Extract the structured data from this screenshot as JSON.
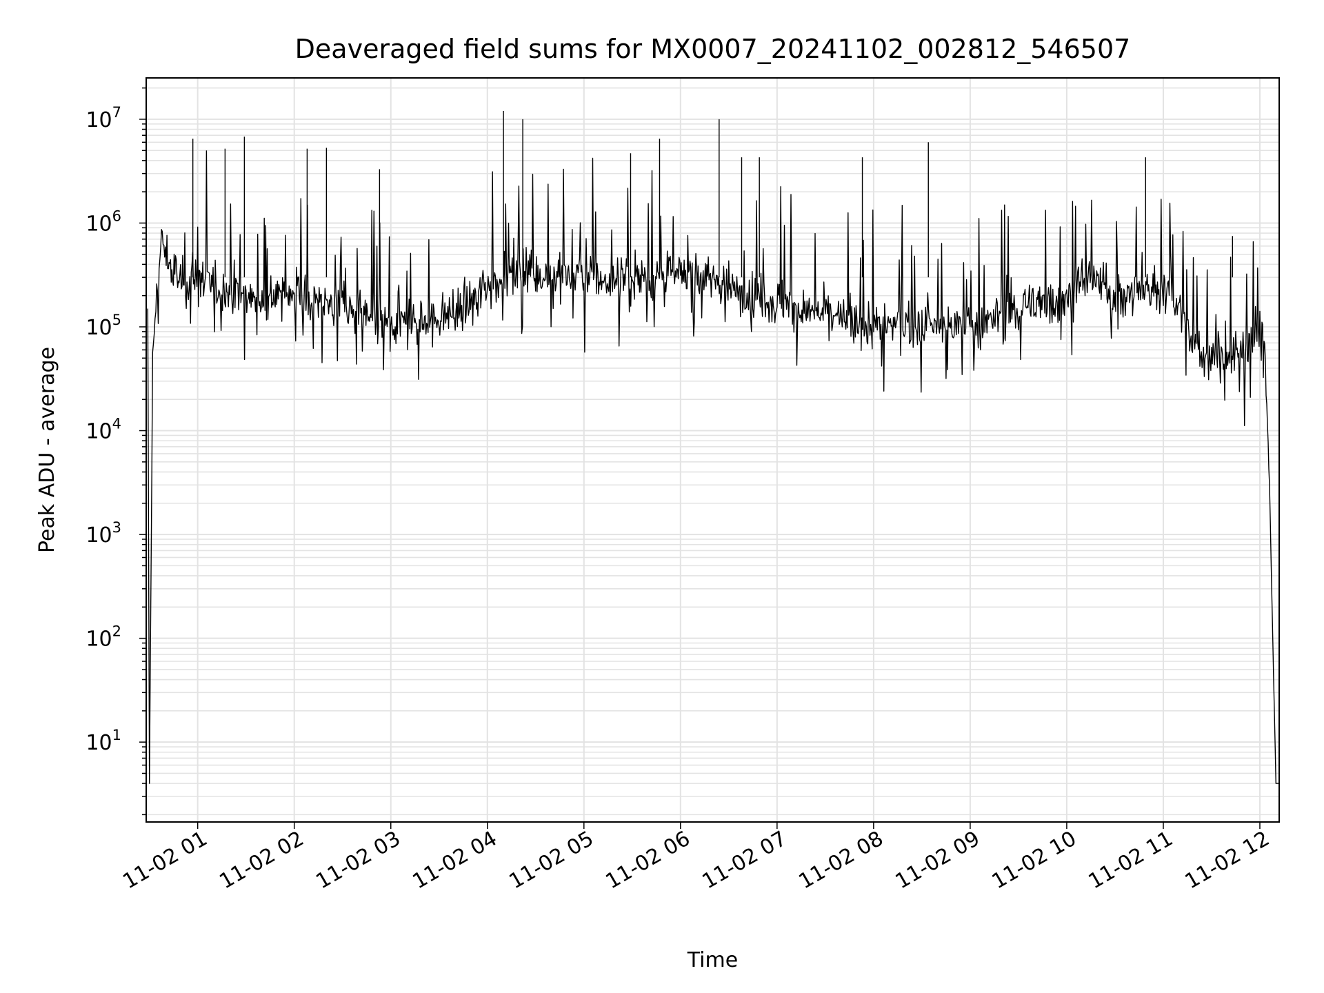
{
  "chart_data": {
    "type": "line",
    "title": "Deaveraged field sums for MX0007_20241102_002812_546507",
    "xlabel": "Time",
    "ylabel": "Peak ADU - average",
    "yscale": "log",
    "ylim": [
      1.7,
      25000000
    ],
    "xlim": [
      "2024-11-02 00:28",
      "2024-11-02 12:12"
    ],
    "grid": true,
    "line_color": "#000000",
    "x_tick_labels": [
      "11-02 01",
      "11-02 02",
      "11-02 03",
      "11-02 04",
      "11-02 05",
      "11-02 06",
      "11-02 07",
      "11-02 08",
      "11-02 09",
      "11-02 10",
      "11-02 11",
      "11-02 12"
    ],
    "y_tick_labels": [
      {
        "base": "10",
        "exp": "1"
      },
      {
        "base": "10",
        "exp": "2"
      },
      {
        "base": "10",
        "exp": "3"
      },
      {
        "base": "10",
        "exp": "4"
      },
      {
        "base": "10",
        "exp": "5"
      },
      {
        "base": "10",
        "exp": "6"
      },
      {
        "base": "10",
        "exp": "7"
      }
    ],
    "series": [
      {
        "x": [
          "2024-11-02 00:29",
          "2024-11-02 00:30",
          "2024-11-02 00:32",
          "2024-11-02 00:34",
          "2024-11-02 00:36",
          "2024-11-02 00:38",
          "2024-11-02 00:40",
          "2024-11-02 00:44",
          "2024-11-02 00:48",
          "2024-11-02 00:52",
          "2024-11-02 00:56",
          "2024-11-02 01:00",
          "2024-11-02 01:10",
          "2024-11-02 01:20",
          "2024-11-02 01:30",
          "2024-11-02 01:40",
          "2024-11-02 01:50",
          "2024-11-02 02:00",
          "2024-11-02 02:15",
          "2024-11-02 02:30",
          "2024-11-02 02:45",
          "2024-11-02 03:00",
          "2024-11-02 03:15",
          "2024-11-02 03:30",
          "2024-11-02 03:45",
          "2024-11-02 04:00",
          "2024-11-02 04:15",
          "2024-11-02 04:30",
          "2024-11-02 04:45",
          "2024-11-02 05:00",
          "2024-11-02 05:15",
          "2024-11-02 05:30",
          "2024-11-02 05:45",
          "2024-11-02 06:00",
          "2024-11-02 06:15",
          "2024-11-02 06:30",
          "2024-11-02 06:45",
          "2024-11-02 07:00",
          "2024-11-02 07:15",
          "2024-11-02 07:30",
          "2024-11-02 07:45",
          "2024-11-02 08:00",
          "2024-11-02 08:15",
          "2024-11-02 08:30",
          "2024-11-02 08:45",
          "2024-11-02 09:00",
          "2024-11-02 09:15",
          "2024-11-02 09:30",
          "2024-11-02 09:45",
          "2024-11-02 10:00",
          "2024-11-02 10:15",
          "2024-11-02 10:30",
          "2024-11-02 10:45",
          "2024-11-02 11:00",
          "2024-11-02 11:10",
          "2024-11-02 11:20",
          "2024-11-02 11:30",
          "2024-11-02 11:40",
          "2024-11-02 11:50",
          "2024-11-02 12:00",
          "2024-11-02 12:03",
          "2024-11-02 12:06",
          "2024-11-02 12:08",
          "2024-11-02 12:10",
          "2024-11-02 12:12"
        ],
        "y": [
          150000,
          4,
          40000,
          150000,
          400000,
          700000,
          500000,
          350000,
          300000,
          250000,
          280000,
          300000,
          250000,
          220000,
          200000,
          180000,
          200000,
          220000,
          180000,
          150000,
          120000,
          100000,
          110000,
          120000,
          150000,
          250000,
          350000,
          350000,
          320000,
          300000,
          280000,
          300000,
          300000,
          320000,
          300000,
          250000,
          200000,
          180000,
          150000,
          130000,
          110000,
          100000,
          110000,
          100000,
          100000,
          100000,
          120000,
          150000,
          180000,
          200000,
          300000,
          200000,
          220000,
          250000,
          150000,
          60000,
          50000,
          50000,
          60000,
          90000,
          60000,
          3000,
          100,
          4,
          4
        ]
      }
    ],
    "spikes": [
      {
        "x": "2024-11-02 00:57",
        "y": 6500000
      },
      {
        "x": "2024-11-02 01:17",
        "y": 5200000
      },
      {
        "x": "2024-11-02 01:29",
        "y": 6800000
      },
      {
        "x": "2024-11-02 02:08",
        "y": 5200000
      },
      {
        "x": "2024-11-02 02:20",
        "y": 5300000
      },
      {
        "x": "2024-11-02 02:53",
        "y": 3300000
      },
      {
        "x": "2024-11-02 04:10",
        "y": 12000000
      },
      {
        "x": "2024-11-02 04:22",
        "y": 10000000
      },
      {
        "x": "2024-11-02 05:29",
        "y": 4700000
      },
      {
        "x": "2024-11-02 05:47",
        "y": 6500000
      },
      {
        "x": "2024-11-02 06:24",
        "y": 10000000
      },
      {
        "x": "2024-11-02 06:38",
        "y": 4300000
      },
      {
        "x": "2024-11-02 06:49",
        "y": 4300000
      },
      {
        "x": "2024-11-02 07:53",
        "y": 4300000
      },
      {
        "x": "2024-11-02 08:34",
        "y": 6000000
      },
      {
        "x": "2024-11-02 10:49",
        "y": 4300000
      },
      {
        "x": "2024-11-02 11:43",
        "y": 750000
      }
    ]
  }
}
